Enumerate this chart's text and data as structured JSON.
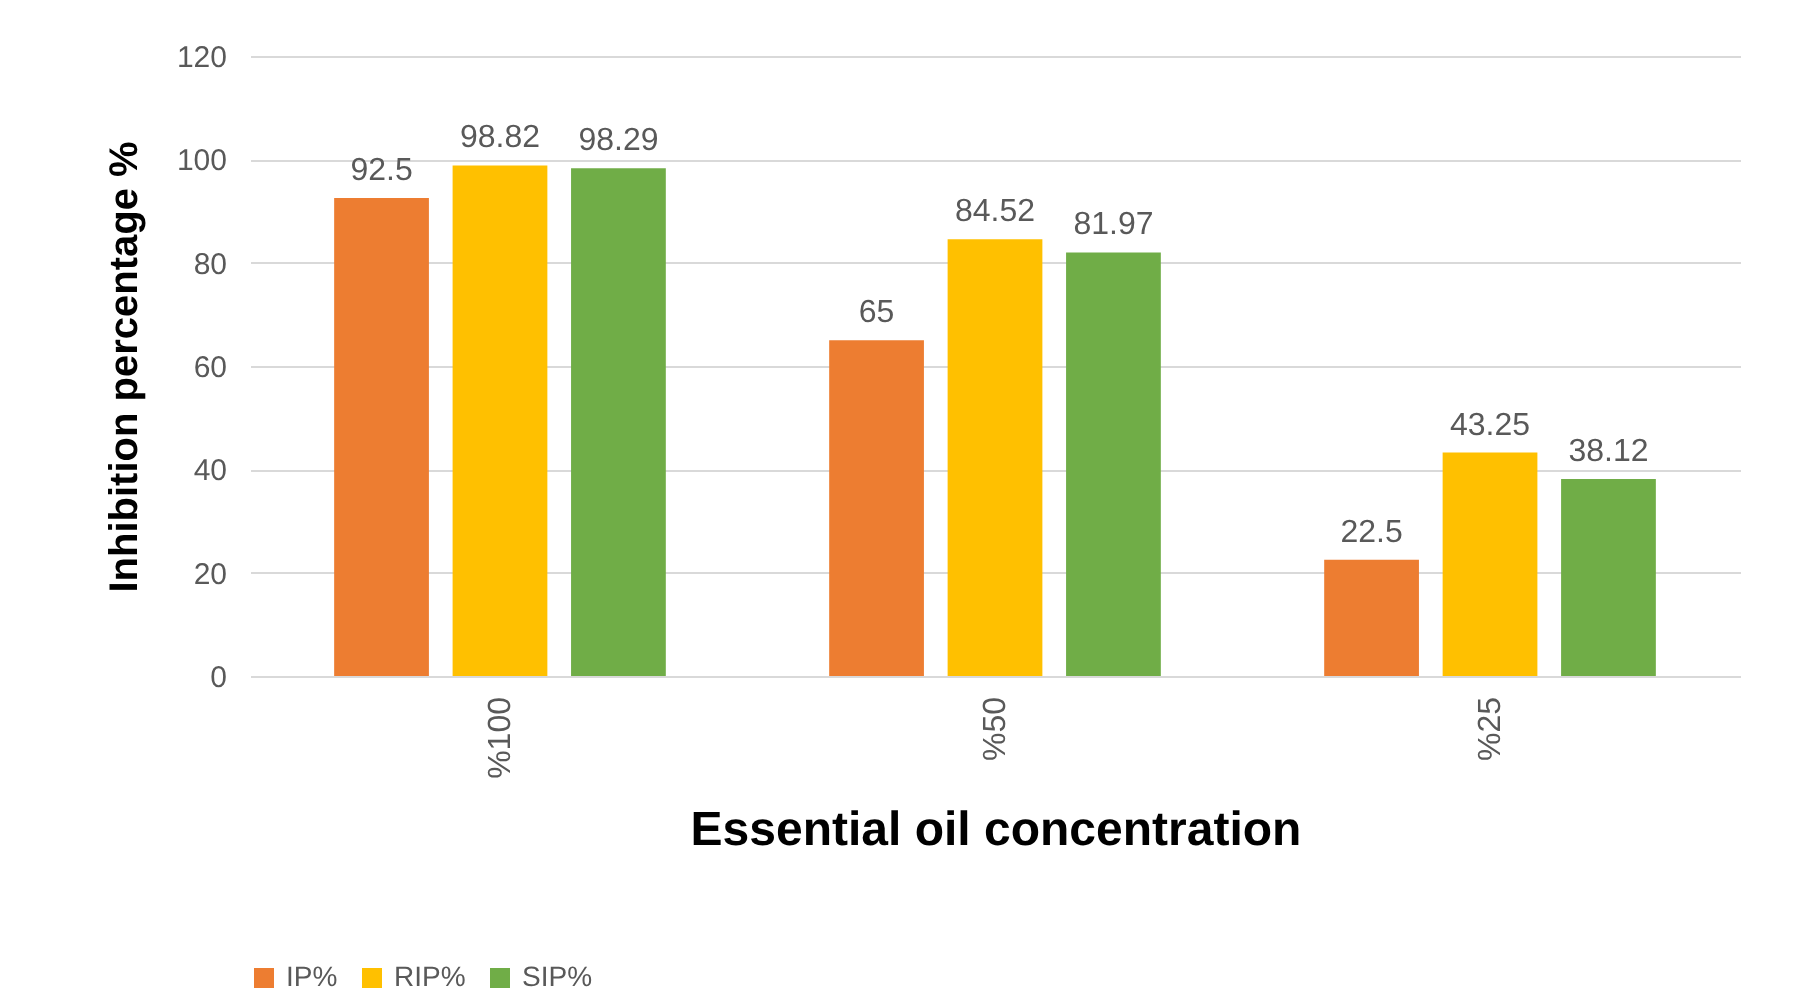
{
  "chart_data": {
    "type": "bar",
    "xlabel": "Essential oil concentration",
    "ylabel": "Inhibition percentage %",
    "categories": [
      "%100",
      "%50",
      "%25"
    ],
    "series": [
      {
        "name": "IP%",
        "color": "#ed7d31",
        "values": [
          92.5,
          65,
          22.5
        ]
      },
      {
        "name": "RIP%",
        "color": "#ffc000",
        "values": [
          98.82,
          84.52,
          43.25
        ]
      },
      {
        "name": "SIP%",
        "color": "#70ad47",
        "values": [
          98.29,
          81.97,
          38.12
        ]
      }
    ],
    "ylim": [
      0,
      120
    ],
    "yticks": [
      0,
      20,
      40,
      60,
      80,
      100,
      120
    ],
    "grid": "y",
    "legend": "bottom",
    "data_labels": true
  }
}
